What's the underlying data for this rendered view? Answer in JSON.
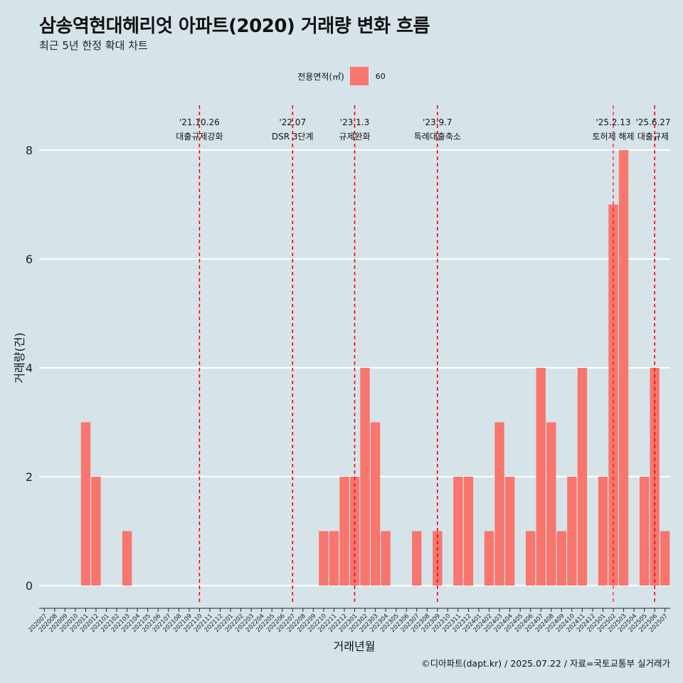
{
  "title": "삼송역현대헤리엇 아파트(2020) 거래량 변화 흐름",
  "subtitle": "최근 5년 한정 확대 차트",
  "legend": {
    "title": "전용면적(㎡)",
    "label": "60",
    "color": "#f8766d"
  },
  "caption": "©디아파트(dapt.kr) / 2025.07.22 / 자료=국토교통부 실거래가",
  "chart_data": {
    "type": "bar",
    "title": "삼송역현대헤리엇 아파트(2020) 거래량 변화 흐름",
    "subtitle": "최근 5년 한정 확대 차트",
    "xlabel": "거래년월",
    "ylabel": "거래량(건)",
    "ylim": [
      0,
      8
    ],
    "yticks": [
      0,
      2,
      4,
      6,
      8
    ],
    "grid": true,
    "legend_position": "top",
    "categories": [
      "202007",
      "202008",
      "202009",
      "202010",
      "202011",
      "202012",
      "202101",
      "202102",
      "202103",
      "202104",
      "202105",
      "202106",
      "202107",
      "202108",
      "202109",
      "202110",
      "202111",
      "202112",
      "202201",
      "202202",
      "202203",
      "202204",
      "202205",
      "202206",
      "202207",
      "202208",
      "202209",
      "202210",
      "202211",
      "202212",
      "202301",
      "202302",
      "202303",
      "202304",
      "202305",
      "202306",
      "202307",
      "202308",
      "202309",
      "202310",
      "202311",
      "202312",
      "202401",
      "202402",
      "202403",
      "202404",
      "202405",
      "202406",
      "202407",
      "202408",
      "202409",
      "202410",
      "202411",
      "202412",
      "202501",
      "202502",
      "202503",
      "202504",
      "202505",
      "202506",
      "202507"
    ],
    "series": [
      {
        "name": "60",
        "color": "#f8766d",
        "values": [
          0,
          0,
          0,
          0,
          3,
          2,
          0,
          0,
          1,
          0,
          0,
          0,
          0,
          0,
          0,
          0,
          0,
          0,
          0,
          0,
          0,
          0,
          0,
          0,
          0,
          0,
          0,
          1,
          1,
          2,
          2,
          4,
          3,
          1,
          0,
          0,
          1,
          0,
          1,
          0,
          2,
          2,
          0,
          1,
          3,
          2,
          0,
          1,
          4,
          3,
          1,
          2,
          4,
          0,
          2,
          7,
          8,
          0,
          2,
          4,
          1
        ]
      }
    ],
    "events": [
      {
        "at": "202110",
        "date": "'21.10.26",
        "label": "대출규제강화"
      },
      {
        "at": "202207",
        "date": "'22.07",
        "label": "DSR 3단계"
      },
      {
        "at": "202301",
        "date": "'23.1.3",
        "label": "규제완화"
      },
      {
        "at": "202309",
        "date": "'23.9.7",
        "label": "특례대출축소"
      },
      {
        "at": "202502",
        "date": "'25.2.13",
        "label": "토허제 해제"
      },
      {
        "at": "202506",
        "date": "'25.6.27",
        "label": "대출규제"
      }
    ]
  }
}
